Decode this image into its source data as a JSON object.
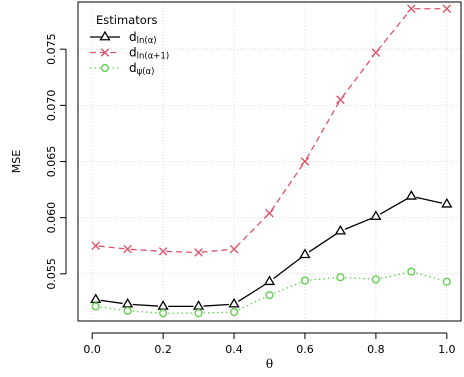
{
  "chart_data": {
    "type": "line",
    "xlabel": "θ",
    "ylabel": "MSE",
    "xlim": [
      -0.04,
      1.04
    ],
    "ylim": [
      0.0508,
      0.0792
    ],
    "x_ticks": [
      0.0,
      0.2,
      0.4,
      0.6,
      0.8,
      1.0
    ],
    "x_tick_labels": [
      "0.0",
      "0.2",
      "0.4",
      "0.6",
      "0.8",
      "1.0"
    ],
    "y_ticks": [
      0.055,
      0.06,
      0.065,
      0.07,
      0.075
    ],
    "y_tick_labels": [
      "0.055",
      "0.060",
      "0.065",
      "0.070",
      "0.075"
    ],
    "grid": true,
    "legend": {
      "title": "Estimators",
      "placement": "top-left",
      "entries": [
        {
          "base": "d",
          "sub": "ln(α)"
        },
        {
          "base": "d",
          "sub": "ln(α+1)"
        },
        {
          "base": "d",
          "sub": "ψ(α)"
        }
      ]
    },
    "x": [
      0.01,
      0.1,
      0.2,
      0.3,
      0.4,
      0.5,
      0.6,
      0.7,
      0.8,
      0.9,
      1.0
    ],
    "series": [
      {
        "name": "d ln(α)",
        "color": "#000000",
        "marker": "triangle",
        "line_style": "solid",
        "values": [
          0.0527,
          0.0523,
          0.0521,
          0.0521,
          0.0523,
          0.0543,
          0.0567,
          0.0588,
          0.0601,
          0.0619,
          0.0612
        ]
      },
      {
        "name": "d ln(α+1)",
        "color": "#df536b",
        "marker": "x",
        "line_style": "dashed",
        "values": [
          0.0575,
          0.0572,
          0.057,
          0.0569,
          0.0572,
          0.0604,
          0.065,
          0.0705,
          0.0747,
          0.0786,
          0.0786
        ]
      },
      {
        "name": "d ψ(α)",
        "color": "#61d04f",
        "marker": "circle",
        "line_style": "dotted",
        "values": [
          0.0521,
          0.0517,
          0.0515,
          0.0515,
          0.0516,
          0.0531,
          0.0544,
          0.0547,
          0.0545,
          0.0552,
          0.0543
        ]
      }
    ]
  }
}
